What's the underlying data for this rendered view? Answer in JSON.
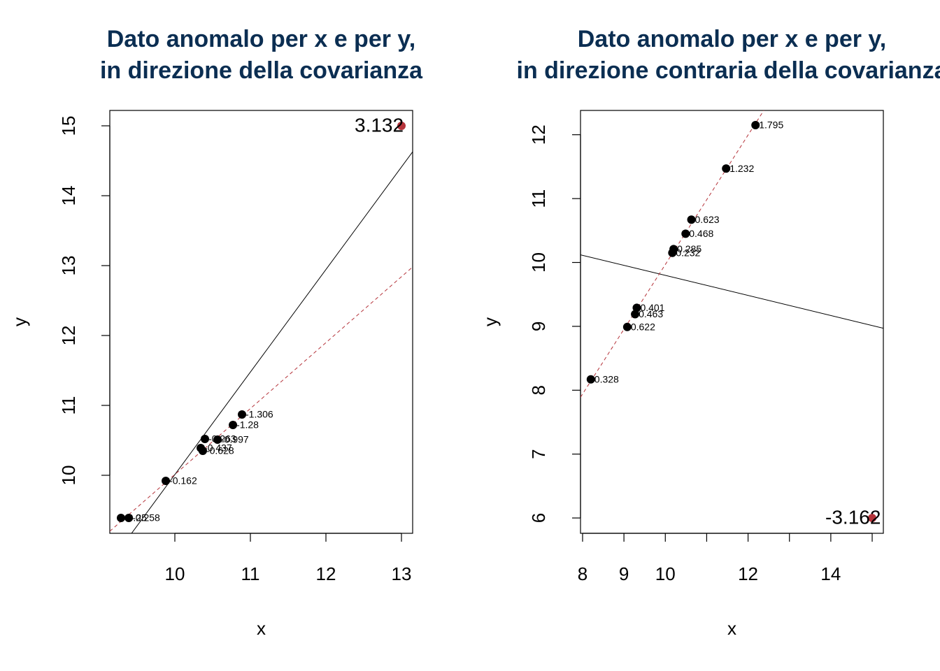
{
  "chart_data": [
    {
      "type": "scatter",
      "title": [
        "Dato anomalo per x e per y,",
        "in direzione della covarianza"
      ],
      "xlabel": "x",
      "ylabel": "y",
      "xlim": [
        9.139,
        13.148
      ],
      "ylim": [
        9.17,
        15.22
      ],
      "xticks": [
        10,
        11,
        12,
        13
      ],
      "yticks": [
        10,
        11,
        12,
        13,
        14,
        15
      ],
      "x": [
        9.287,
        9.39,
        9.88,
        10.343,
        10.37,
        10.398,
        10.565,
        10.769,
        10.889
      ],
      "y": [
        9.39,
        9.39,
        9.92,
        10.39,
        10.35,
        10.52,
        10.51,
        10.72,
        10.87
      ],
      "labels": [
        "-0.25",
        "-0.258",
        "-0.162",
        "-0.437",
        "-0.628",
        "-0.263",
        "-0.997",
        "-1.28",
        "-1.306"
      ],
      "color": "#000000",
      "outlier": {
        "x": 13.0,
        "y": 15.0,
        "label": "3.132",
        "color": "#b5333a"
      },
      "lines": [
        {
          "intercept": -4.66,
          "slope": 1.467,
          "color": "#000000",
          "dashed": false
        },
        {
          "intercept": 0.582,
          "slope": 0.943,
          "color": "#b5333a",
          "dashed": true
        }
      ]
    },
    {
      "type": "scatter",
      "title": [
        "Dato anomalo per x e per y,",
        "in direzione contraria della covarianza"
      ],
      "xlabel": "x",
      "ylabel": "y",
      "xlim": [
        7.95,
        15.27
      ],
      "ylim": [
        5.76,
        12.38
      ],
      "xticks": [
        8,
        9,
        10,
        12,
        14
      ],
      "xticks_minor": [
        11,
        13,
        15
      ],
      "yticks": [
        6,
        7,
        8,
        9,
        10,
        11,
        12
      ],
      "x": [
        8.2,
        9.08,
        9.27,
        9.31,
        10.17,
        10.2,
        10.49,
        10.63,
        11.47,
        12.18
      ],
      "y": [
        8.17,
        8.99,
        9.19,
        9.29,
        10.15,
        10.21,
        10.45,
        10.67,
        11.47,
        12.15
      ],
      "labels": [
        "0.328",
        "0.622",
        "0.463",
        "0.401",
        "0.232",
        "0.285",
        "0.468",
        "0.623",
        "1.232",
        "1.795"
      ],
      "color": "#000000",
      "outlier": {
        "x": 15.0,
        "y": 6.0,
        "label": "-3.162",
        "color": "#b5333a"
      },
      "lines": [
        {
          "intercept": 11.368,
          "slope": -0.157,
          "color": "#000000",
          "dashed": false
        },
        {
          "intercept": -0.167,
          "slope": 1.0135,
          "color": "#b5333a",
          "dashed": true
        }
      ]
    }
  ]
}
